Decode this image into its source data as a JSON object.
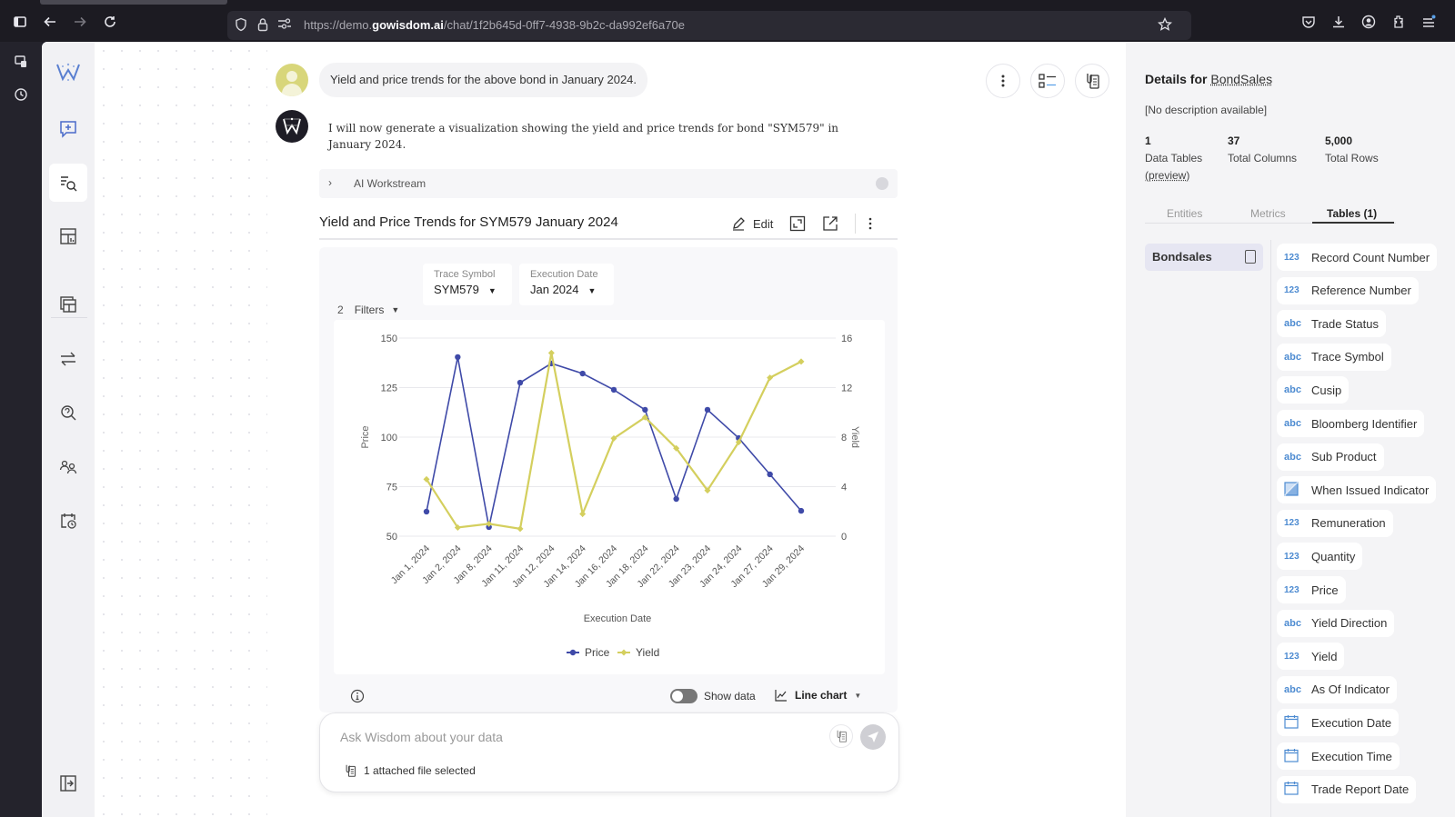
{
  "browser": {
    "url_prefix": "https://demo.",
    "url_domain": "gowisdom.ai",
    "url_path": "/chat/1f2b645d-0ff7-4938-9b2c-da992ef6a70e"
  },
  "chat": {
    "user_message": "Yield and price trends for the above bond in January 2024.",
    "bot_message": "I will now generate a visualization showing the yield and price trends for bond \"SYM579\" in January 2024.",
    "workstream_label": "AI Workstream"
  },
  "visualization": {
    "title": "Yield and Price Trends for SYM579 January 2024",
    "edit_label": "Edit",
    "filters_count": "2",
    "filters_label": "Filters",
    "filter_trace_label": "Trace Symbol",
    "filter_trace_value": "SYM579",
    "filter_date_label": "Execution Date",
    "filter_date_value": "Jan 2024",
    "show_data_label": "Show data",
    "chart_type_label": "Line chart"
  },
  "composer": {
    "placeholder": "Ask Wisdom about your data",
    "attached_label": "1 attached file selected"
  },
  "details": {
    "title_prefix": "Details for",
    "title_link": "BondSales",
    "description": "[No description available]",
    "stats": [
      {
        "value": "1",
        "label": "Data Tables",
        "sub": "(preview)"
      },
      {
        "value": "37",
        "label": "Total Columns"
      },
      {
        "value": "5,000",
        "label": "Total Rows"
      }
    ],
    "tabs": [
      "Entities",
      "Metrics",
      "Tables (1)"
    ],
    "table_name": "Bondsales",
    "columns": [
      {
        "type": "123",
        "name": "Record Count Number"
      },
      {
        "type": "123",
        "name": "Reference Number"
      },
      {
        "type": "abc",
        "name": "Trade Status"
      },
      {
        "type": "abc",
        "name": "Trace Symbol"
      },
      {
        "type": "abc",
        "name": "Cusip"
      },
      {
        "type": "abc",
        "name": "Bloomberg Identifier"
      },
      {
        "type": "abc",
        "name": "Sub Product"
      },
      {
        "type": "bool",
        "name": "When Issued Indicator"
      },
      {
        "type": "123",
        "name": "Remuneration"
      },
      {
        "type": "123",
        "name": "Quantity"
      },
      {
        "type": "123",
        "name": "Price"
      },
      {
        "type": "abc",
        "name": "Yield Direction"
      },
      {
        "type": "123",
        "name": "Yield"
      },
      {
        "type": "abc",
        "name": "As Of Indicator"
      },
      {
        "type": "date",
        "name": "Execution Date"
      },
      {
        "type": "date",
        "name": "Execution Time"
      },
      {
        "type": "date",
        "name": "Trade Report Date"
      }
    ]
  },
  "colors": {
    "price": "#3f4aa8",
    "yield": "#d4cf5e",
    "accent": "#4d8bd1"
  },
  "chart_data": {
    "type": "line",
    "title": "Yield and Price Trends for SYM579 January 2024",
    "xlabel": "Execution Date",
    "ylabel": "Price",
    "y2label": "Yield",
    "categories": [
      "Jan 1, 2024",
      "Jan 2, 2024",
      "Jan 8, 2024",
      "Jan 11, 2024",
      "Jan 12, 2024",
      "Jan 14, 2024",
      "Jan 16, 2024",
      "Jan 18, 2024",
      "Jan 22, 2024",
      "Jan 23, 2024",
      "Jan 24, 2024",
      "Jan 27, 2024",
      "Jan 29, 2024"
    ],
    "series": [
      {
        "name": "Price",
        "axis": "left",
        "values": [
          62.4,
          140.4,
          54.6,
          127.5,
          137.2,
          132.1,
          123.9,
          113.8,
          68.8,
          113.8,
          99.5,
          81.2,
          62.8
        ]
      },
      {
        "name": "Yield",
        "axis": "right",
        "values": [
          4.6,
          0.7,
          1.0,
          0.6,
          14.8,
          1.8,
          7.9,
          9.6,
          7.1,
          3.7,
          7.6,
          12.8,
          14.1
        ]
      }
    ],
    "ylim": [
      50,
      150
    ],
    "y2lim": [
      0,
      16
    ],
    "yticks": [
      50,
      75,
      100,
      125,
      150
    ],
    "y2ticks": [
      0,
      4,
      8,
      12,
      16
    ],
    "grid": true,
    "legend_position": "bottom"
  }
}
